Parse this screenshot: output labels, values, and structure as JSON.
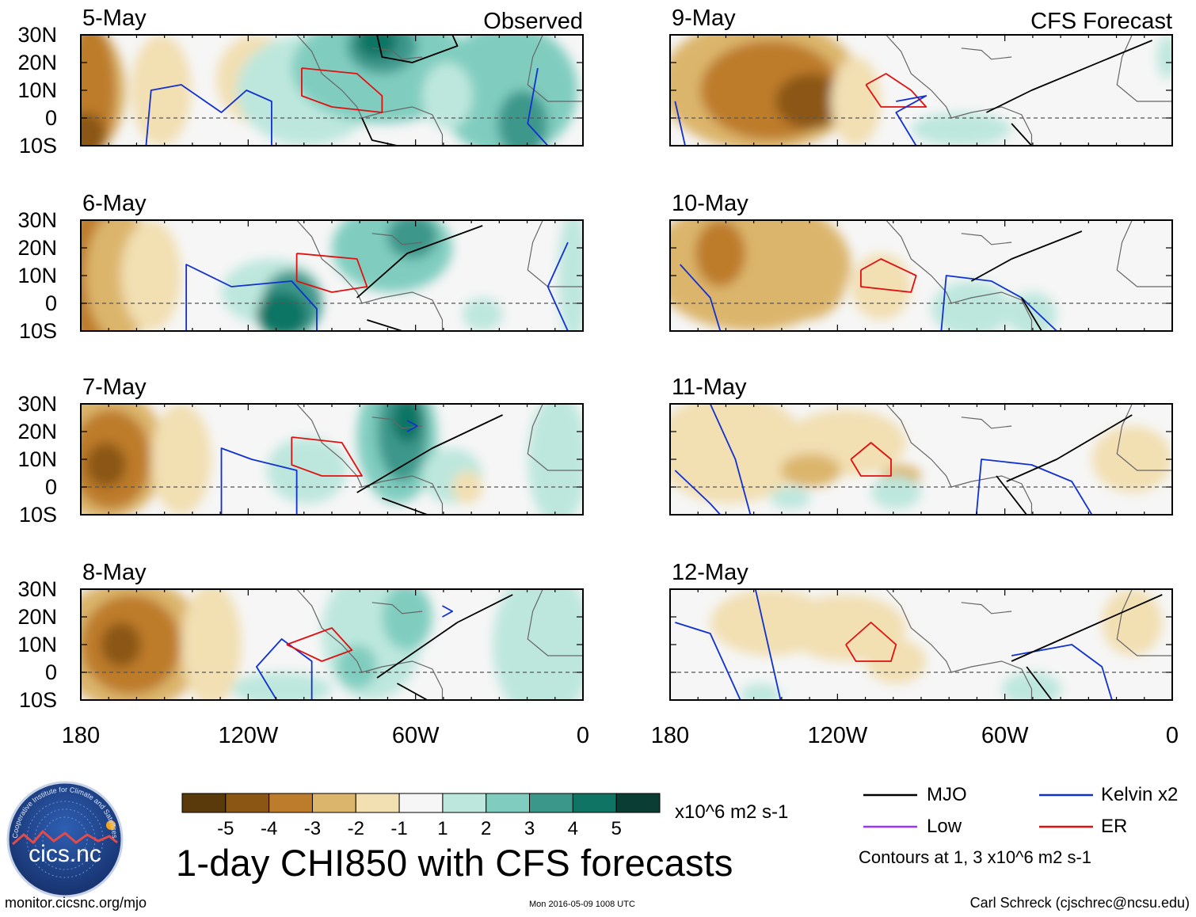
{
  "figure": {
    "title": "1-day CHI850 with CFS forecasts",
    "units": "x10^6 m2 s-1",
    "source_url": "monitor.cicsnc.org/mjo",
    "timestamp": "Mon 2016-05-09 1008 UTC",
    "author": "Carl Schreck (cjschrec@ncsu.edu)",
    "logo_text": "cics.nc",
    "logo_ring_text": "Cooperative Institute for Climate and Satellites",
    "column_labels": [
      "Observed",
      "CFS Forecast"
    ]
  },
  "colors": {
    "brown_dark": "#5a3a0a",
    "teal_dark": "#0a3d33",
    "mjo": "#000000",
    "kelvin": "#1030d0",
    "low": "#9933ff",
    "er": "#e01010",
    "land": "#666666"
  },
  "legend": {
    "contours": [
      {
        "name": "MJO",
        "color": "#000000"
      },
      {
        "name": "Kelvin x2",
        "color": "#1030d0"
      },
      {
        "name": "Low",
        "color": "#9933ff"
      },
      {
        "name": "ER",
        "color": "#e01010"
      }
    ],
    "contour_note": "Contours at 1, 3 x10^6 m2 s-1"
  },
  "chart_data": {
    "type": "heatmap",
    "variable": "CHI850 anomaly",
    "x_axis": {
      "range": [
        -180,
        0
      ],
      "ticks": [
        -180,
        -120,
        -60,
        0
      ],
      "tick_labels": [
        "180",
        "120W",
        "60W",
        "0"
      ]
    },
    "y_axis": {
      "range": [
        -10,
        30
      ],
      "ticks": [
        30,
        20,
        10,
        0,
        -10
      ],
      "tick_labels": [
        "30N",
        "20N",
        "10N",
        "0",
        "10S"
      ]
    },
    "colorbar": {
      "levels": [
        -6,
        -5,
        -4,
        -3,
        -2,
        -1,
        1,
        2,
        3,
        4,
        5,
        6
      ],
      "tick_labels": [
        "-5",
        "-4",
        "-3",
        "-2",
        "-1",
        "1",
        "2",
        "3",
        "4",
        "5"
      ],
      "colors": [
        "#5a3a0a",
        "#8b5614",
        "#bd7c2c",
        "#dcb56c",
        "#f2dfb2",
        "#f6f6f6",
        "#bde7dd",
        "#80cdc0",
        "#3c978b",
        "#0f7464",
        "#0a3d33"
      ]
    },
    "panels": [
      {
        "date": "5-May",
        "type": "Observed",
        "contour_label_col": 0
      },
      {
        "date": "6-May",
        "type": "Observed"
      },
      {
        "date": "7-May",
        "type": "Observed"
      },
      {
        "date": "8-May",
        "type": "Observed"
      },
      {
        "date": "9-May",
        "type": "CFS Forecast"
      },
      {
        "date": "10-May",
        "type": "CFS Forecast"
      },
      {
        "date": "11-May",
        "type": "CFS Forecast"
      },
      {
        "date": "12-May",
        "type": "CFS Forecast"
      }
    ]
  }
}
